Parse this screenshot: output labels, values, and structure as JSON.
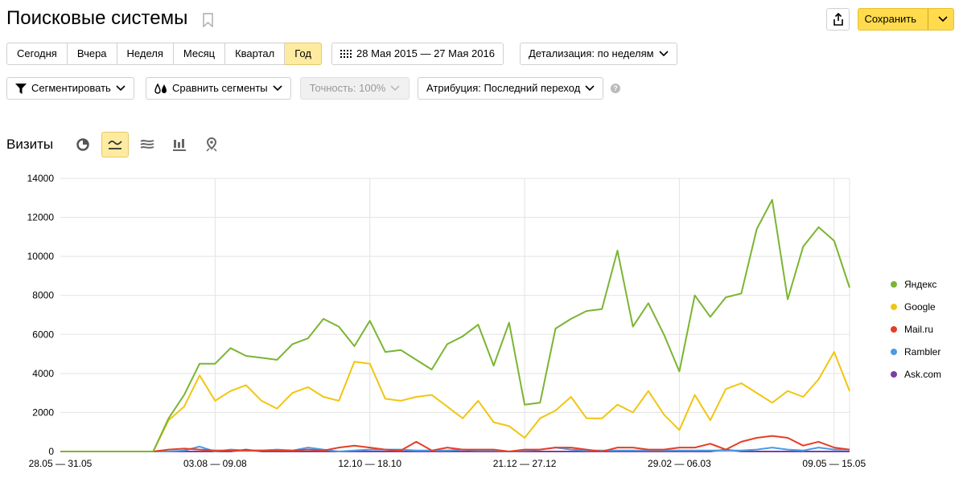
{
  "header": {
    "title": "Поисковые системы",
    "save_label": "Сохранить"
  },
  "period": {
    "options": [
      "Сегодня",
      "Вчера",
      "Неделя",
      "Месяц",
      "Квартал",
      "Год"
    ],
    "active": "Год",
    "date_range": "28 Мая 2015 — 27 Мая 2016",
    "detail": "Детализация: по неделям"
  },
  "filters": {
    "segment": "Сегментировать",
    "compare": "Сравнить сегменты",
    "accuracy": "Точность: 100%",
    "attribution": "Атрибуция: Последний переход",
    "help": "?"
  },
  "visits_label": "Визиты",
  "icons": [
    "pie-icon",
    "line-chart-icon",
    "area-chart-icon",
    "bar-chart-icon",
    "map-icon"
  ],
  "chart_data": {
    "type": "line",
    "ylim": [
      0,
      14000
    ],
    "yticks": [
      0,
      2000,
      4000,
      6000,
      8000,
      10000,
      12000,
      14000
    ],
    "x_tick_labels": [
      {
        "index": 0,
        "label": "28.05 — 31.05"
      },
      {
        "index": 10,
        "label": "03.08 — 09.08"
      },
      {
        "index": 20,
        "label": "12.10 — 18.10"
      },
      {
        "index": 30,
        "label": "21.12 — 27.12"
      },
      {
        "index": 40,
        "label": "29.02 — 06.03"
      },
      {
        "index": 50,
        "label": "09.05 — 15.05"
      }
    ],
    "grid": true,
    "legend_position": "right",
    "series": [
      {
        "name": "Яндекс",
        "color": "#7ab531",
        "values": [
          0,
          0,
          0,
          0,
          0,
          0,
          0,
          1700,
          2900,
          4500,
          4500,
          5300,
          4900,
          4800,
          4700,
          5500,
          5800,
          6800,
          6400,
          5400,
          6700,
          5100,
          5200,
          4700,
          4200,
          5500,
          5900,
          6500,
          4400,
          6600,
          2400,
          2500,
          6300,
          6800,
          7200,
          7300,
          10300,
          6400,
          7600,
          6000,
          4100,
          8000,
          6900,
          7900,
          8100,
          11400,
          12900,
          7800,
          10500,
          11500,
          10800,
          8400
        ]
      },
      {
        "name": "Google",
        "color": "#f2c511",
        "values": [
          0,
          0,
          0,
          0,
          0,
          0,
          0,
          1600,
          2300,
          3900,
          2600,
          3100,
          3400,
          2600,
          2200,
          3000,
          3300,
          2800,
          2600,
          4600,
          4500,
          2700,
          2600,
          2800,
          2900,
          2300,
          1700,
          2600,
          1500,
          1300,
          700,
          1700,
          2100,
          2800,
          1700,
          1700,
          2400,
          2000,
          3100,
          1900,
          1100,
          2900,
          1600,
          3200,
          3500,
          3000,
          2500,
          3100,
          2800,
          3700,
          5100,
          3100
        ]
      },
      {
        "name": "Mail.ru",
        "color": "#e53e25",
        "values": [
          0,
          0,
          0,
          0,
          0,
          0,
          0,
          100,
          150,
          100,
          50,
          50,
          50,
          50,
          50,
          50,
          100,
          50,
          200,
          300,
          200,
          100,
          50,
          500,
          50,
          200,
          100,
          100,
          100,
          0,
          100,
          100,
          200,
          200,
          100,
          0,
          200,
          200,
          100,
          100,
          200,
          200,
          400,
          100,
          500,
          700,
          800,
          700,
          300,
          500,
          200,
          100
        ]
      },
      {
        "name": "Rambler",
        "color": "#4a9be5",
        "values": [
          0,
          0,
          0,
          0,
          0,
          0,
          0,
          0,
          50,
          250,
          0,
          100,
          50,
          50,
          100,
          50,
          200,
          100,
          0,
          50,
          100,
          100,
          100,
          50,
          50,
          50,
          100,
          50,
          50,
          0,
          50,
          100,
          200,
          100,
          50,
          50,
          50,
          50,
          50,
          50,
          50,
          50,
          50,
          50,
          50,
          100,
          200,
          100,
          50,
          200,
          100,
          100
        ]
      },
      {
        "name": "Ask.com",
        "color": "#7b3fa3",
        "values": [
          0,
          0,
          0,
          0,
          0,
          0,
          0,
          0,
          0,
          0,
          0,
          0,
          100,
          0,
          0,
          0,
          0,
          0,
          0,
          0,
          0,
          0,
          0,
          0,
          0,
          0,
          0,
          0,
          0,
          0,
          0,
          0,
          0,
          0,
          0,
          0,
          0,
          0,
          0,
          0,
          0,
          0,
          0,
          100,
          0,
          0,
          0,
          0,
          0,
          0,
          0,
          0
        ]
      }
    ]
  }
}
